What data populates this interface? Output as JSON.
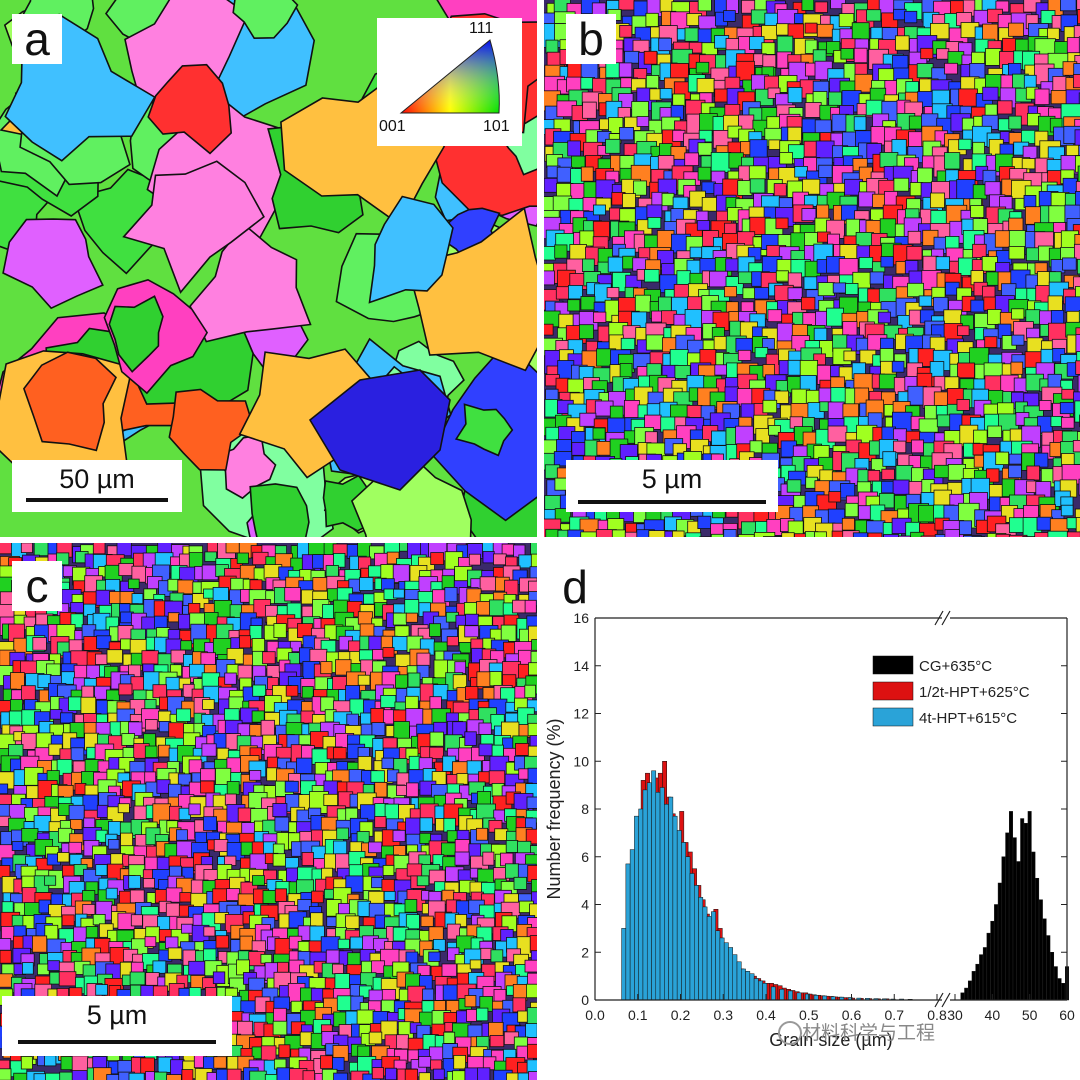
{
  "panels": {
    "a": {
      "letter": "a",
      "scale_label": "50 µm",
      "ipf_legend": {
        "top": "111",
        "left": "001",
        "right": "101"
      }
    },
    "b": {
      "letter": "b",
      "scale_label": "5 µm"
    },
    "c": {
      "letter": "c",
      "scale_label": "5 µm"
    },
    "d": {
      "letter": "d"
    }
  },
  "watermark": "材料科学与工程",
  "chart_data": {
    "type": "bar",
    "title": "",
    "xlabel": "Grain size (µm)",
    "ylabel": "Number frequency (%)",
    "ylim": [
      0,
      16
    ],
    "yticks": [
      "0",
      "2",
      "4",
      "6",
      "8",
      "10",
      "12",
      "14",
      "16"
    ],
    "axis_left": {
      "xlim": [
        0.0,
        0.8
      ],
      "xticks": [
        "0.0",
        "0.1",
        "0.2",
        "0.3",
        "0.4",
        "0.5",
        "0.6",
        "0.7",
        "0.8"
      ]
    },
    "axis_break": true,
    "axis_right": {
      "xlim": [
        30,
        60
      ],
      "xticks": [
        "30",
        "40",
        "50",
        "60"
      ]
    },
    "legend_position": "top-right",
    "series": [
      {
        "name": "CG+635°C",
        "color": "#000000",
        "axis": "right",
        "x": [
          32,
          33,
          34,
          35,
          36,
          37,
          38,
          39,
          40,
          41,
          42,
          43,
          44,
          45,
          46,
          47,
          48,
          49,
          50,
          51,
          52,
          53,
          54,
          55,
          56,
          57,
          58,
          59,
          60
        ],
        "values": [
          0.3,
          0.5,
          0.8,
          1.2,
          1.5,
          1.9,
          2.2,
          2.8,
          3.3,
          4.0,
          4.9,
          6.0,
          7.0,
          7.9,
          6.8,
          5.8,
          7.6,
          7.4,
          7.9,
          6.2,
          5.1,
          4.2,
          3.4,
          2.7,
          2.0,
          1.4,
          0.9,
          0.7,
          1.4
        ]
      },
      {
        "name": "1/2t-HPT+625°C",
        "color": "#dd1111",
        "axis": "left",
        "x": [
          0.11,
          0.12,
          0.13,
          0.14,
          0.15,
          0.16,
          0.17,
          0.18,
          0.19,
          0.2,
          0.21,
          0.22,
          0.23,
          0.24,
          0.25,
          0.26,
          0.27,
          0.28,
          0.29,
          0.3,
          0.31,
          0.32,
          0.33,
          0.34,
          0.35,
          0.36,
          0.37,
          0.38,
          0.39,
          0.4,
          0.41,
          0.42,
          0.43,
          0.44,
          0.45,
          0.46,
          0.47,
          0.48,
          0.49,
          0.5,
          0.51,
          0.52,
          0.53,
          0.54,
          0.55,
          0.56,
          0.57,
          0.58,
          0.59,
          0.6,
          0.62,
          0.64,
          0.66,
          0.68
        ],
        "values": [
          9.2,
          9.5,
          9.0,
          9.3,
          9.5,
          10.0,
          8.5,
          7.8,
          7.0,
          7.9,
          6.6,
          6.2,
          5.5,
          4.8,
          4.2,
          3.6,
          3.2,
          3.8,
          3.0,
          2.3,
          2.0,
          1.8,
          1.6,
          1.3,
          1.2,
          1.1,
          1.0,
          0.9,
          0.8,
          0.7,
          0.7,
          0.65,
          0.6,
          0.5,
          0.45,
          0.4,
          0.35,
          0.3,
          0.3,
          0.25,
          0.22,
          0.2,
          0.18,
          0.16,
          0.15,
          0.13,
          0.12,
          0.1,
          0.1,
          0.08,
          0.07,
          0.06,
          0.05,
          0.05
        ]
      },
      {
        "name": "4t-HPT+615°C",
        "color": "#2aa3d8",
        "axis": "left",
        "x": [
          0.07,
          0.08,
          0.09,
          0.1,
          0.11,
          0.12,
          0.13,
          0.14,
          0.15,
          0.16,
          0.17,
          0.18,
          0.19,
          0.2,
          0.21,
          0.22,
          0.23,
          0.24,
          0.25,
          0.26,
          0.27,
          0.28,
          0.29,
          0.3,
          0.31,
          0.32,
          0.33,
          0.34,
          0.35,
          0.36,
          0.37,
          0.38,
          0.39,
          0.4,
          0.42,
          0.44,
          0.46,
          0.48,
          0.5,
          0.52,
          0.54,
          0.56,
          0.58,
          0.6,
          0.62,
          0.64,
          0.66,
          0.68,
          0.7,
          0.72,
          0.74
        ],
        "values": [
          3.0,
          5.7,
          6.3,
          7.7,
          8.0,
          8.8,
          9.1,
          9.6,
          8.7,
          8.9,
          8.2,
          8.5,
          7.7,
          7.1,
          6.6,
          6.0,
          5.3,
          4.8,
          4.3,
          3.9,
          3.5,
          3.7,
          2.9,
          2.6,
          2.4,
          2.2,
          1.9,
          1.6,
          1.3,
          1.2,
          1.1,
          0.9,
          0.8,
          0.7,
          0.55,
          0.45,
          0.38,
          0.3,
          0.25,
          0.2,
          0.17,
          0.14,
          0.12,
          0.1,
          0.08,
          0.07,
          0.06,
          0.05,
          0.04,
          0.04,
          0.03
        ]
      }
    ]
  }
}
